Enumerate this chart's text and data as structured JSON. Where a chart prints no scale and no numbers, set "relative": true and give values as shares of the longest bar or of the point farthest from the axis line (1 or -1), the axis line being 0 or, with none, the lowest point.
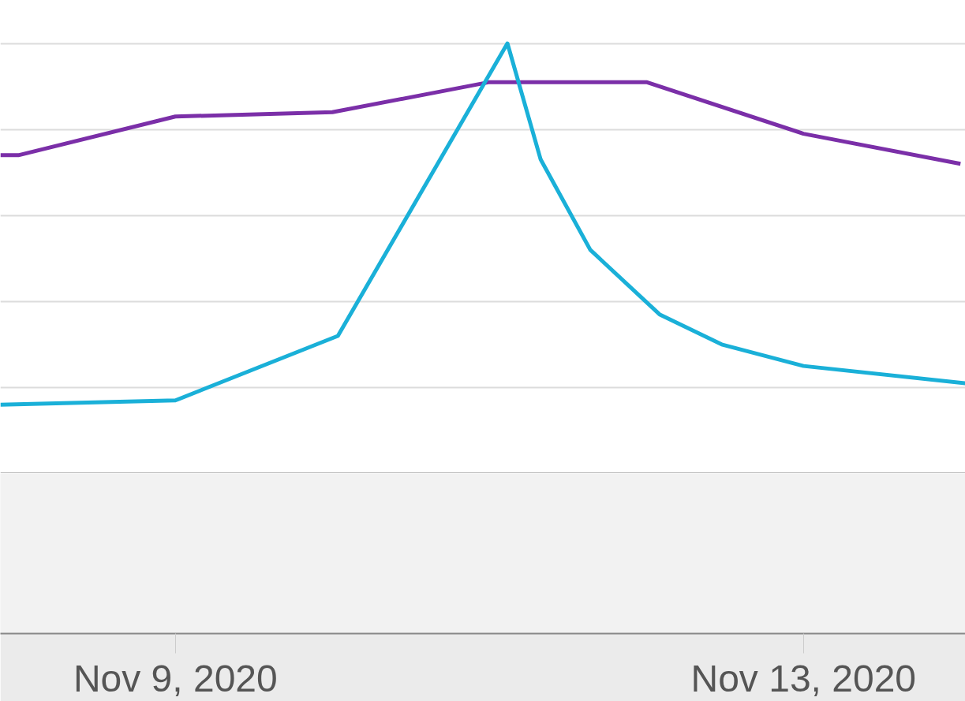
{
  "chart_data": {
    "type": "line",
    "relative": true,
    "grid": "y",
    "xlim": [
      "2020-11-07T21:15",
      "2020-11-14T00:45"
    ],
    "xticks": [
      {
        "value": "2020-11-09",
        "label": "Nov 9, 2020"
      },
      {
        "value": "2020-11-13",
        "label": "Nov 13, 2020"
      }
    ],
    "series": [
      {
        "color": "#7b2fa8",
        "x": [
          "2020-11-07T21:15",
          "2020-11-08T00:00",
          "2020-11-09T00:00",
          "2020-11-10T00:00",
          "2020-11-11T00:00",
          "2020-11-12T00:00",
          "2020-11-13T00:00",
          "2020-11-14T00:00"
        ],
        "values": [
          0.74,
          0.74,
          0.83,
          0.84,
          0.91,
          0.91,
          0.79,
          0.72
        ]
      },
      {
        "color": "#1ab0d8",
        "x": [
          "2020-11-07T21:15",
          "2020-11-09T00:00",
          "2020-11-10T00:50",
          "2020-11-11T02:45",
          "2020-11-11T07:50",
          "2020-11-11T15:25",
          "2020-11-12T02:00",
          "2020-11-12T11:30",
          "2020-11-13T00:00",
          "2020-11-14T00:45"
        ],
        "values": [
          0.16,
          0.17,
          0.32,
          1,
          0.73,
          0.52,
          0.37,
          0.3,
          0.25,
          0.21
        ]
      }
    ]
  }
}
